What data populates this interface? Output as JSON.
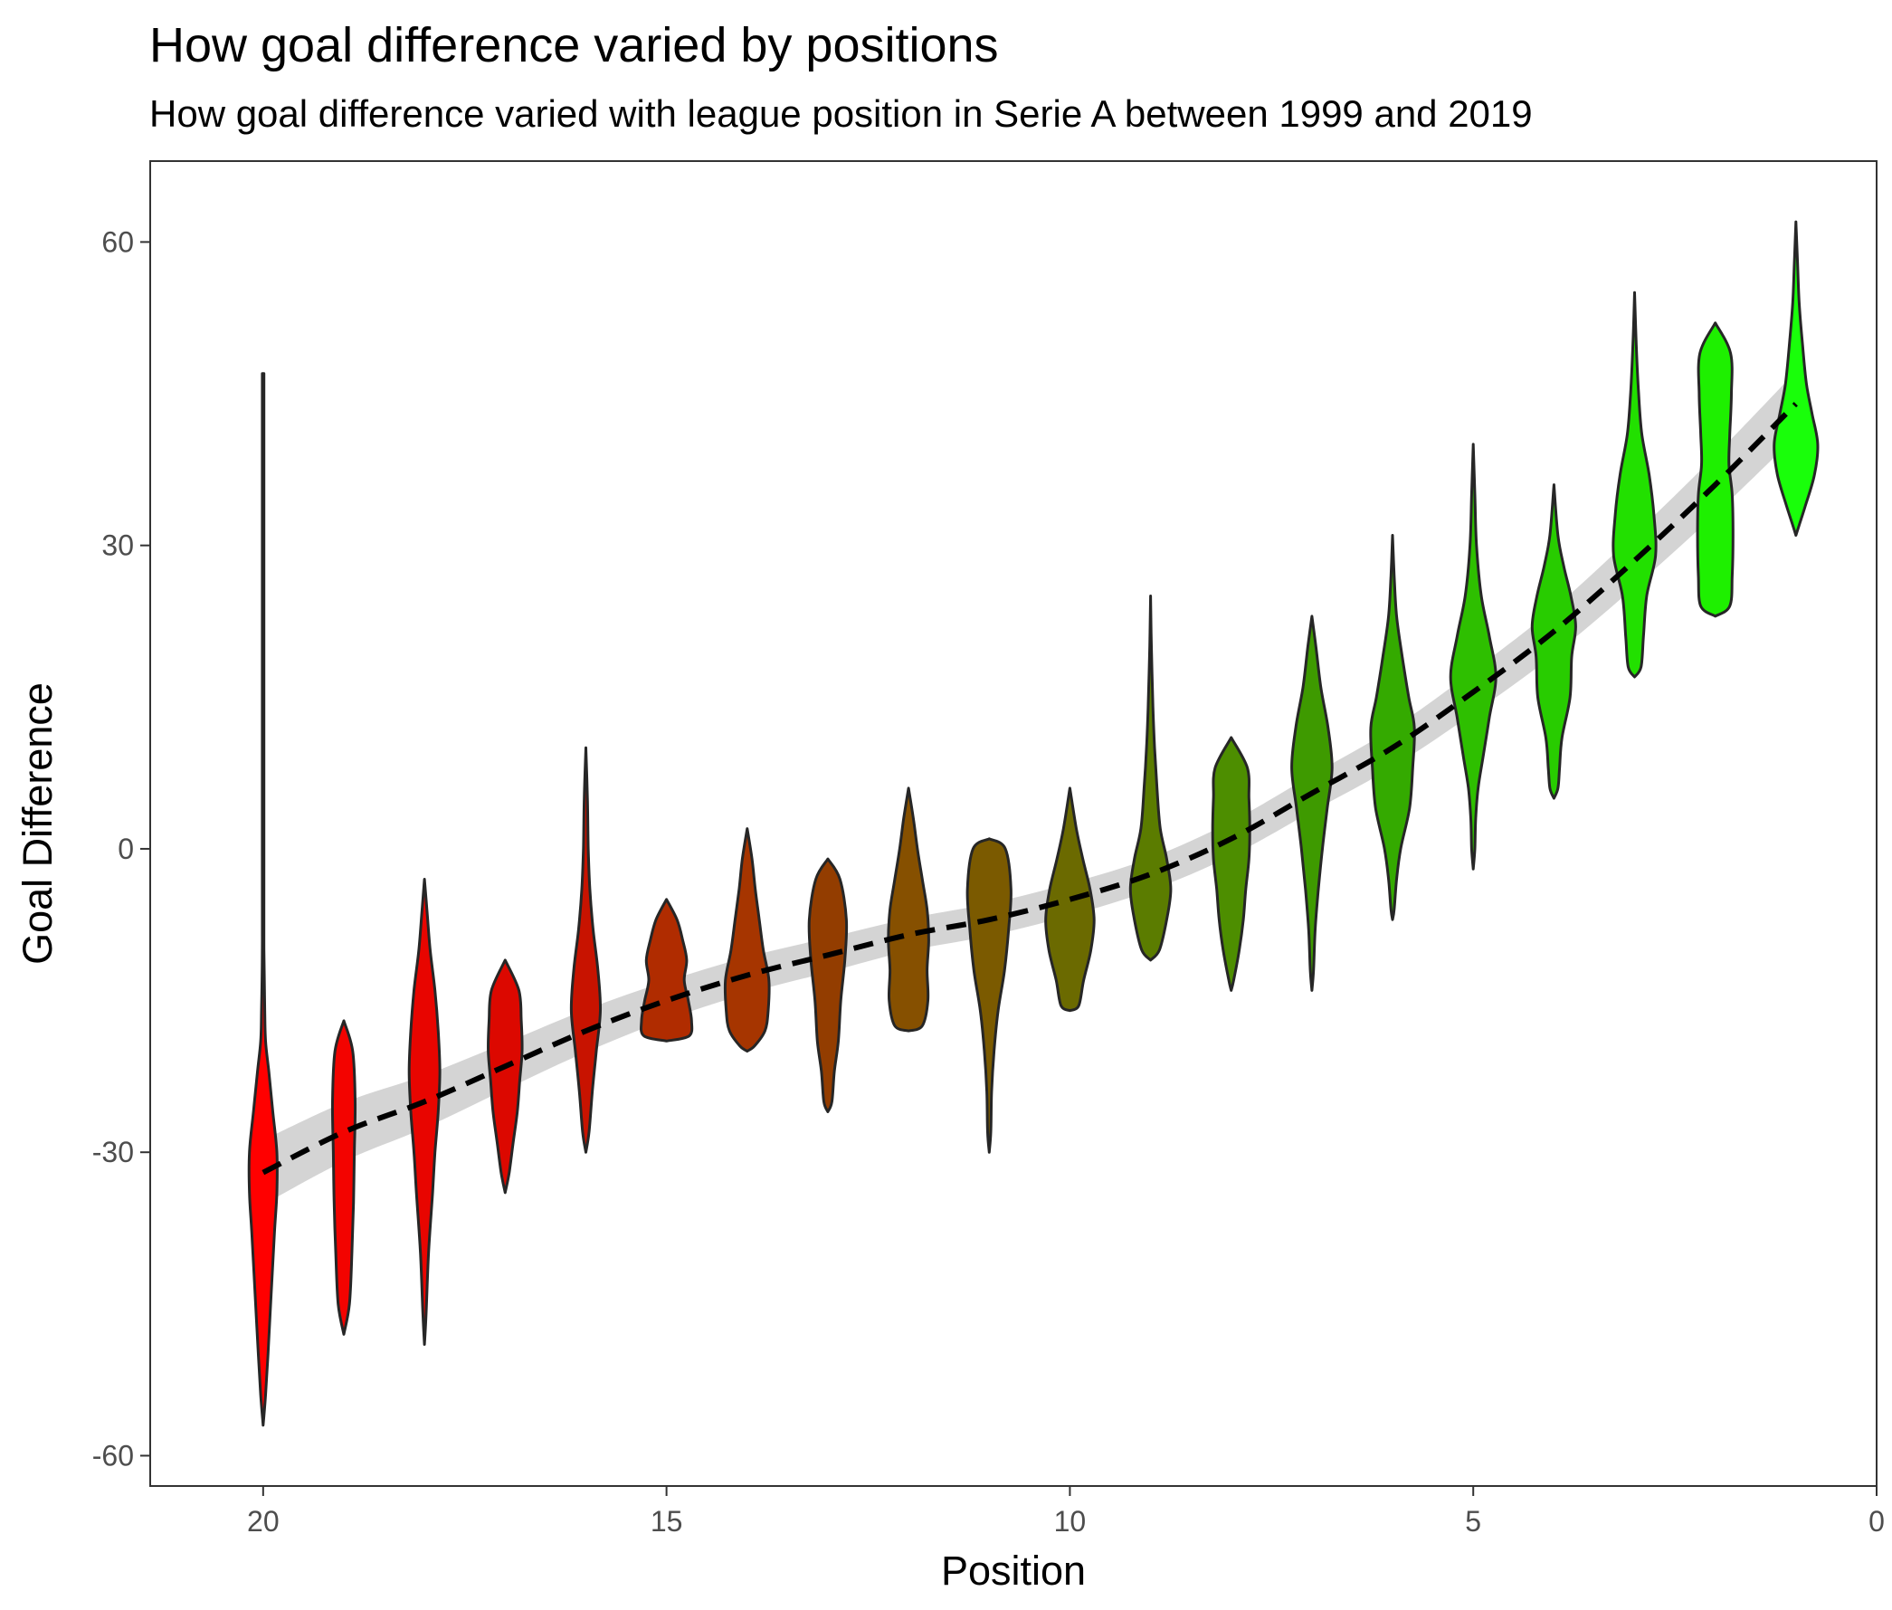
{
  "chart_data": {
    "type": "violin",
    "title": "How goal difference varied by positions",
    "subtitle": "How goal difference varied with league position in Serie A between 1999 and 2019",
    "xlabel": "Position",
    "ylabel": "Goal Difference",
    "x_reversed": true,
    "xlim": [
      0,
      21.4
    ],
    "ylim": [
      -63,
      68
    ],
    "x_ticks": [
      {
        "value": 20,
        "label": "20"
      },
      {
        "value": 15,
        "label": "15"
      },
      {
        "value": 10,
        "label": "10"
      },
      {
        "value": 5,
        "label": "5"
      },
      {
        "value": 0,
        "label": "0"
      }
    ],
    "y_ticks": [
      {
        "value": 60,
        "label": "60"
      },
      {
        "value": 30,
        "label": "30"
      },
      {
        "value": 0,
        "label": "0"
      },
      {
        "value": -30,
        "label": "-30"
      },
      {
        "value": -60,
        "label": "-60"
      }
    ],
    "grid": false,
    "violins": [
      {
        "position": 20,
        "color": "#ff0000",
        "profile": [
          [
            -57,
            0
          ],
          [
            -54,
            0.03
          ],
          [
            -50,
            0.06
          ],
          [
            -44,
            0.1
          ],
          [
            -38,
            0.14
          ],
          [
            -34,
            0.17
          ],
          [
            -30,
            0.17
          ],
          [
            -26,
            0.12
          ],
          [
            -22,
            0.07
          ],
          [
            -19,
            0.03
          ],
          [
            -16,
            0.02
          ],
          [
            -10,
            0.01
          ],
          [
            0,
            0.01
          ],
          [
            20,
            0.01
          ],
          [
            47,
            0.01
          ]
        ]
      },
      {
        "position": 19,
        "color": "#f30300",
        "profile": [
          [
            -48,
            0
          ],
          [
            -45,
            0.07
          ],
          [
            -40,
            0.1
          ],
          [
            -35,
            0.12
          ],
          [
            -30,
            0.13
          ],
          [
            -25,
            0.14
          ],
          [
            -20,
            0.11
          ],
          [
            -17,
            0
          ]
        ]
      },
      {
        "position": 18,
        "color": "#e80500",
        "profile": [
          [
            -49,
            0
          ],
          [
            -46,
            0.02
          ],
          [
            -40,
            0.05
          ],
          [
            -34,
            0.1
          ],
          [
            -30,
            0.13
          ],
          [
            -26,
            0.17
          ],
          [
            -22,
            0.19
          ],
          [
            -18,
            0.17
          ],
          [
            -14,
            0.13
          ],
          [
            -10,
            0.07
          ],
          [
            -6,
            0.03
          ],
          [
            -3,
            0
          ]
        ]
      },
      {
        "position": 17,
        "color": "#dc0800",
        "profile": [
          [
            -34,
            0
          ],
          [
            -32,
            0.05
          ],
          [
            -29,
            0.1
          ],
          [
            -26,
            0.15
          ],
          [
            -23,
            0.18
          ],
          [
            -20,
            0.21
          ],
          [
            -17,
            0.2
          ],
          [
            -14,
            0.17
          ],
          [
            -11,
            0
          ]
        ]
      },
      {
        "position": 16,
        "color": "#c81300",
        "profile": [
          [
            -30,
            0
          ],
          [
            -28,
            0.04
          ],
          [
            -24,
            0.08
          ],
          [
            -20,
            0.13
          ],
          [
            -16,
            0.18
          ],
          [
            -12,
            0.15
          ],
          [
            -8,
            0.09
          ],
          [
            -4,
            0.05
          ],
          [
            0,
            0.03
          ],
          [
            5,
            0.02
          ],
          [
            10,
            0
          ]
        ]
      },
      {
        "position": 15,
        "color": "#b02c00",
        "profile": [
          [
            -19,
            0
          ],
          [
            -18.5,
            0.28
          ],
          [
            -17,
            0.31
          ],
          [
            -15,
            0.27
          ],
          [
            -13,
            0.22
          ],
          [
            -11,
            0.25
          ],
          [
            -9,
            0.2
          ],
          [
            -7,
            0.13
          ],
          [
            -5,
            0
          ]
        ]
      },
      {
        "position": 14,
        "color": "#a63500",
        "profile": [
          [
            -20,
            0
          ],
          [
            -19.5,
            0.09
          ],
          [
            -18,
            0.22
          ],
          [
            -16,
            0.26
          ],
          [
            -13,
            0.27
          ],
          [
            -10,
            0.2
          ],
          [
            -7,
            0.15
          ],
          [
            -4,
            0.1
          ],
          [
            -1,
            0.06
          ],
          [
            2,
            0
          ]
        ]
      },
      {
        "position": 13,
        "color": "#933d00",
        "profile": [
          [
            -26,
            0
          ],
          [
            -25,
            0.05
          ],
          [
            -22,
            0.08
          ],
          [
            -19,
            0.13
          ],
          [
            -15,
            0.16
          ],
          [
            -11,
            0.21
          ],
          [
            -7,
            0.23
          ],
          [
            -3,
            0.15
          ],
          [
            -1,
            0
          ]
        ]
      },
      {
        "position": 12,
        "color": "#865000",
        "profile": [
          [
            -18,
            0
          ],
          [
            -17.5,
            0.17
          ],
          [
            -15,
            0.24
          ],
          [
            -12,
            0.23
          ],
          [
            -9,
            0.25
          ],
          [
            -6,
            0.23
          ],
          [
            -3,
            0.17
          ],
          [
            0,
            0.11
          ],
          [
            3,
            0.06
          ],
          [
            6,
            0
          ]
        ]
      },
      {
        "position": 11,
        "color": "#7b5a00",
        "profile": [
          [
            -30,
            0
          ],
          [
            -28,
            0.02
          ],
          [
            -24,
            0.03
          ],
          [
            -20,
            0.06
          ],
          [
            -16,
            0.11
          ],
          [
            -12,
            0.19
          ],
          [
            -8,
            0.24
          ],
          [
            -4,
            0.27
          ],
          [
            0,
            0.2
          ],
          [
            1,
            0
          ]
        ]
      },
      {
        "position": 10,
        "color": "#6b6a00",
        "profile": [
          [
            -16,
            0
          ],
          [
            -15.5,
            0.11
          ],
          [
            -13,
            0.17
          ],
          [
            -10,
            0.26
          ],
          [
            -7,
            0.3
          ],
          [
            -4,
            0.25
          ],
          [
            -1,
            0.16
          ],
          [
            2,
            0.08
          ],
          [
            6,
            0
          ]
        ]
      },
      {
        "position": 9,
        "color": "#5b7c00",
        "profile": [
          [
            -11,
            0
          ],
          [
            -10,
            0.11
          ],
          [
            -7,
            0.2
          ],
          [
            -4,
            0.25
          ],
          [
            -1,
            0.2
          ],
          [
            2,
            0.12
          ],
          [
            6,
            0.08
          ],
          [
            10,
            0.05
          ],
          [
            14,
            0.03
          ],
          [
            20,
            0.01
          ],
          [
            25,
            0
          ]
        ]
      },
      {
        "position": 8,
        "color": "#4d8e00",
        "profile": [
          [
            -14,
            0
          ],
          [
            -13,
            0.03
          ],
          [
            -10,
            0.1
          ],
          [
            -7,
            0.15
          ],
          [
            -4,
            0.18
          ],
          [
            -1,
            0.22
          ],
          [
            2,
            0.23
          ],
          [
            5,
            0.22
          ],
          [
            8,
            0.2
          ],
          [
            11,
            0
          ]
        ]
      },
      {
        "position": 7,
        "color": "#3e9a00",
        "profile": [
          [
            -14,
            0
          ],
          [
            -12,
            0.02
          ],
          [
            -8,
            0.04
          ],
          [
            -4,
            0.08
          ],
          [
            0,
            0.13
          ],
          [
            4,
            0.19
          ],
          [
            8,
            0.25
          ],
          [
            12,
            0.2
          ],
          [
            16,
            0.11
          ],
          [
            20,
            0.05
          ],
          [
            23,
            0
          ]
        ]
      },
      {
        "position": 6,
        "color": "#34aa00",
        "profile": [
          [
            -7,
            0
          ],
          [
            -6,
            0.02
          ],
          [
            -3,
            0.05
          ],
          [
            0,
            0.1
          ],
          [
            4,
            0.21
          ],
          [
            8,
            0.25
          ],
          [
            12,
            0.27
          ],
          [
            15,
            0.2
          ],
          [
            19,
            0.12
          ],
          [
            23,
            0.05
          ],
          [
            27,
            0.02
          ],
          [
            31,
            0
          ]
        ]
      },
      {
        "position": 5,
        "color": "#2ebf00",
        "profile": [
          [
            -2,
            0
          ],
          [
            0,
            0.02
          ],
          [
            3,
            0.03
          ],
          [
            6,
            0.06
          ],
          [
            9,
            0.12
          ],
          [
            13,
            0.2
          ],
          [
            17,
            0.28
          ],
          [
            21,
            0.2
          ],
          [
            25,
            0.1
          ],
          [
            30,
            0.04
          ],
          [
            35,
            0.02
          ],
          [
            40,
            0
          ]
        ]
      },
      {
        "position": 4,
        "color": "#28cc00",
        "profile": [
          [
            5,
            0
          ],
          [
            6,
            0.05
          ],
          [
            8,
            0.07
          ],
          [
            11,
            0.1
          ],
          [
            15,
            0.2
          ],
          [
            19,
            0.22
          ],
          [
            22,
            0.27
          ],
          [
            25,
            0.21
          ],
          [
            28,
            0.12
          ],
          [
            31,
            0.05
          ],
          [
            36,
            0
          ]
        ]
      },
      {
        "position": 3,
        "color": "#22e000",
        "profile": [
          [
            17,
            0
          ],
          [
            18,
            0.08
          ],
          [
            21,
            0.11
          ],
          [
            25,
            0.15
          ],
          [
            29,
            0.26
          ],
          [
            33,
            0.24
          ],
          [
            37,
            0.18
          ],
          [
            41,
            0.09
          ],
          [
            45,
            0.05
          ],
          [
            50,
            0.02
          ],
          [
            55,
            0
          ]
        ]
      },
      {
        "position": 2,
        "color": "#1ef000",
        "profile": [
          [
            23,
            0
          ],
          [
            24,
            0.18
          ],
          [
            27,
            0.21
          ],
          [
            31,
            0.22
          ],
          [
            35,
            0.21
          ],
          [
            38,
            0.17
          ],
          [
            41,
            0.18
          ],
          [
            45,
            0.2
          ],
          [
            49,
            0.19
          ],
          [
            52,
            0
          ]
        ]
      },
      {
        "position": 1,
        "color": "#19ff0a",
        "profile": [
          [
            31,
            0
          ],
          [
            32,
            0.04
          ],
          [
            34,
            0.12
          ],
          [
            37,
            0.23
          ],
          [
            40,
            0.27
          ],
          [
            43,
            0.2
          ],
          [
            46,
            0.13
          ],
          [
            50,
            0.08
          ],
          [
            54,
            0.04
          ],
          [
            58,
            0.02
          ],
          [
            62,
            0
          ]
        ]
      }
    ],
    "trend_line": {
      "style": "dashed",
      "color": "#000000",
      "band_color": "#cccccc",
      "points": [
        [
          20,
          -32
        ],
        [
          19,
          -28
        ],
        [
          18,
          -25
        ],
        [
          17,
          -21.5
        ],
        [
          16,
          -18
        ],
        [
          15,
          -15
        ],
        [
          14,
          -12.5
        ],
        [
          13,
          -10.5
        ],
        [
          12,
          -8.5
        ],
        [
          11,
          -7
        ],
        [
          10,
          -5
        ],
        [
          9,
          -2.5
        ],
        [
          8,
          1
        ],
        [
          7,
          5.5
        ],
        [
          6,
          10
        ],
        [
          5,
          15.5
        ],
        [
          4,
          21.5
        ],
        [
          3,
          28.5
        ],
        [
          2,
          36
        ],
        [
          1,
          44
        ]
      ],
      "band_halfwidth": [
        3.2,
        2.9,
        2.6,
        2.3,
        2.1,
        1.9,
        1.8,
        1.7,
        1.6,
        1.6,
        1.6,
        1.6,
        1.7,
        1.8,
        1.9,
        2.1,
        2.3,
        2.6,
        2.9,
        3.2
      ]
    }
  }
}
